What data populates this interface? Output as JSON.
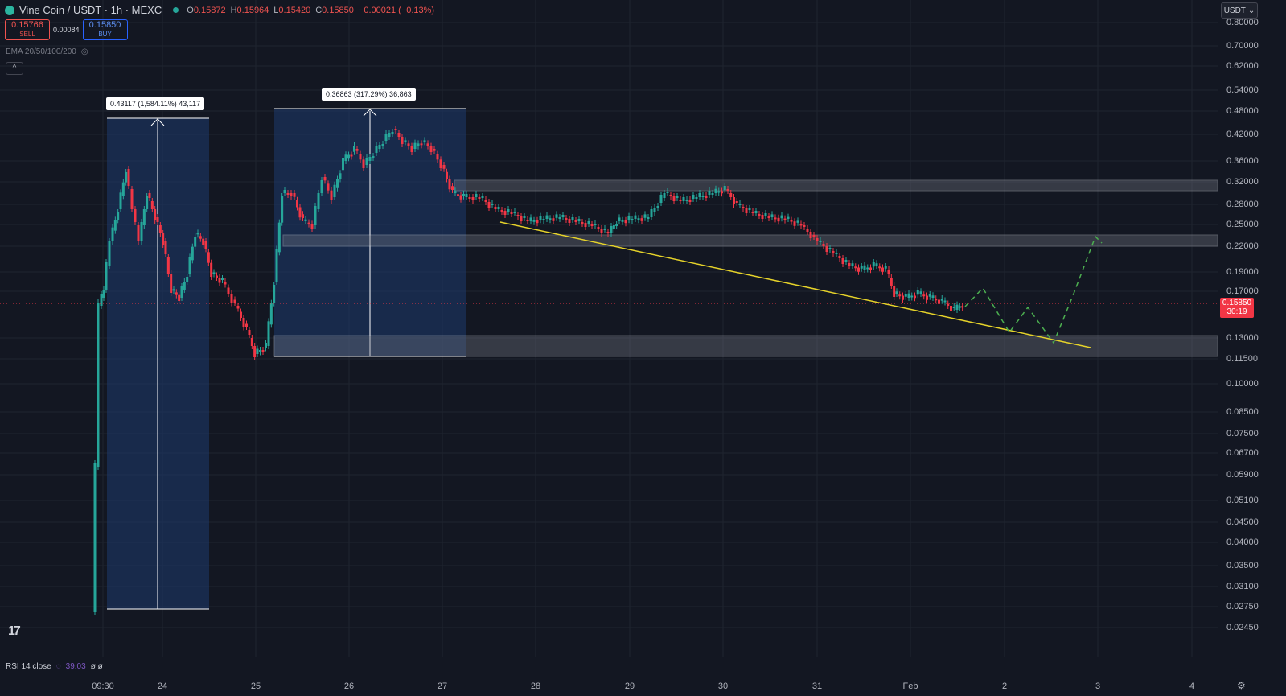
{
  "header": {
    "symbol_title": "Vine Coin / USDT · 1h · MEXC",
    "ohlc": {
      "o_label": "O",
      "o": "0.15872",
      "h_label": "H",
      "h": "0.15964",
      "l_label": "L",
      "l": "0.15420",
      "c_label": "C",
      "c": "0.15850",
      "change": "−0.00021 (−0.13%)"
    }
  },
  "trade": {
    "sell_price": "0.15766",
    "sell_label": "SELL",
    "spread": "0.00084",
    "buy_price": "0.15850",
    "buy_label": "BUY"
  },
  "indicators": {
    "ema_label": "EMA 20/50/100/200"
  },
  "currency_selector": "USDT",
  "last_price": {
    "value": "0.15850",
    "countdown": "30:19"
  },
  "price_axis": [
    "0.80000",
    "0.70000",
    "0.62000",
    "0.54000",
    "0.48000",
    "0.42000",
    "0.36000",
    "0.32000",
    "0.28000",
    "0.25000",
    "0.22000",
    "0.19000",
    "0.17000",
    "0.13000",
    "0.11500",
    "0.10000",
    "0.08500",
    "0.07500",
    "0.06700",
    "0.05900",
    "0.05100",
    "0.04500",
    "0.04000",
    "0.03500",
    "0.03100",
    "0.02750",
    "0.02450"
  ],
  "time_axis": [
    "09:30",
    "24",
    "25",
    "26",
    "27",
    "28",
    "29",
    "30",
    "31",
    "Feb",
    "2",
    "3",
    "4"
  ],
  "measurements": [
    {
      "label": "0.43117 (1,584.11%) 43,117"
    },
    {
      "label": "0.36863 (317.29%) 36,863"
    }
  ],
  "rsi": {
    "label": "RSI 14 close",
    "value": "39.03",
    "extra": "ø ø"
  },
  "colors": {
    "up": "#26a69a",
    "down": "#f23645",
    "trendline": "#e6d32a",
    "projection": "#4caf50",
    "range_fill": "#1e3a6e"
  }
}
